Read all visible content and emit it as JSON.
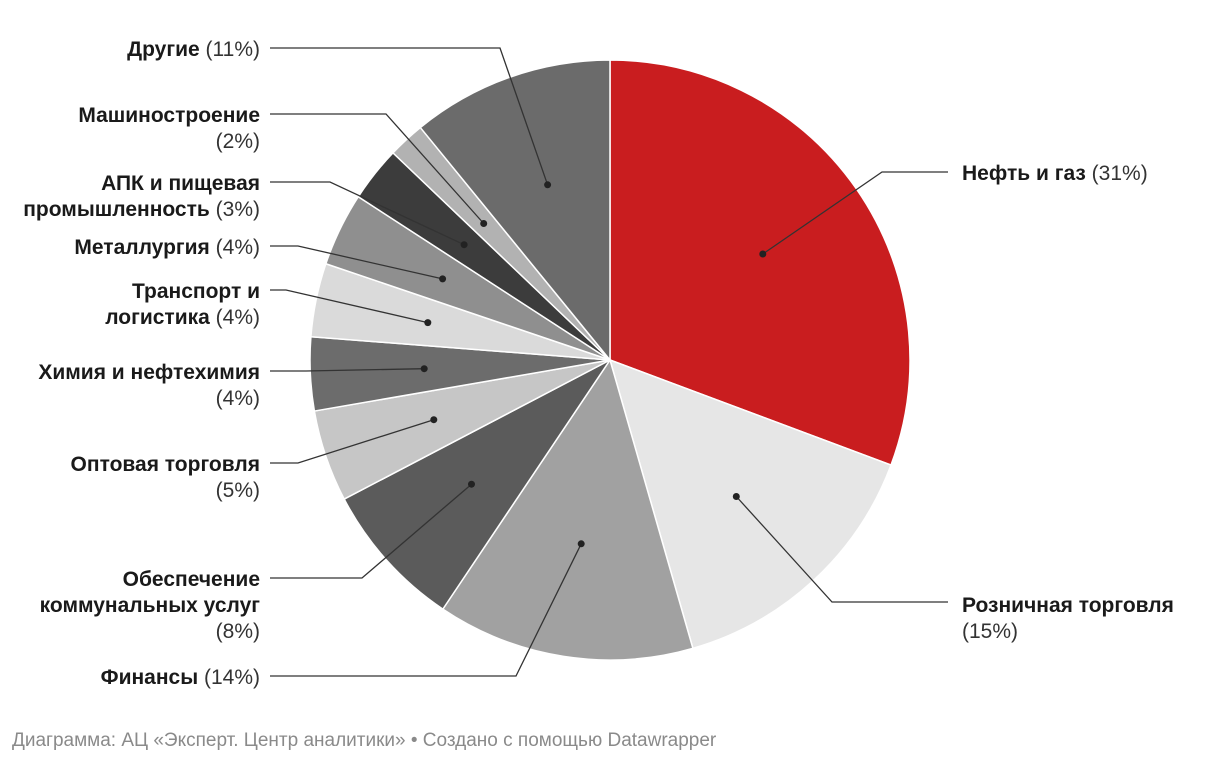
{
  "chart_data": {
    "type": "pie",
    "start_angle_deg": 0,
    "direction": "clockwise",
    "slices": [
      {
        "name": "Нефть и газ",
        "value": 31,
        "pct_label": "(31%)",
        "color": "#c91d1f"
      },
      {
        "name": "Розничная торговля",
        "value": 15,
        "pct_label": "(15%)",
        "color": "#e6e6e6"
      },
      {
        "name": "Финансы",
        "value": 14,
        "pct_label": "(14%)",
        "color": "#a1a1a1"
      },
      {
        "name": "Обеспечение коммунальных услуг",
        "value": 8,
        "pct_label": "(8%)",
        "color": "#5b5b5b"
      },
      {
        "name": "Оптовая торговля",
        "value": 5,
        "pct_label": "(5%)",
        "color": "#c6c6c6"
      },
      {
        "name": "Химия и нефтехимия",
        "value": 4,
        "pct_label": "(4%)",
        "color": "#6c6c6c"
      },
      {
        "name": "Транспорт и логистика",
        "value": 4,
        "pct_label": "(4%)",
        "color": "#dadada"
      },
      {
        "name": "Металлургия",
        "value": 4,
        "pct_label": "(4%)",
        "color": "#8f8f8f"
      },
      {
        "name": "АПК и пищевая промышленность",
        "value": 3,
        "pct_label": "(3%)",
        "color": "#3c3c3c"
      },
      {
        "name": "Машиностроение",
        "value": 2,
        "pct_label": "(2%)",
        "color": "#b2b2b2"
      },
      {
        "name": "Другие",
        "value": 11,
        "pct_label": "(11%)",
        "color": "#6b6b6b"
      }
    ]
  },
  "footer": {
    "text": "Диаграмма: АЦ «Эксперт. Центр аналитики» • Создано с помощью Datawrapper"
  }
}
